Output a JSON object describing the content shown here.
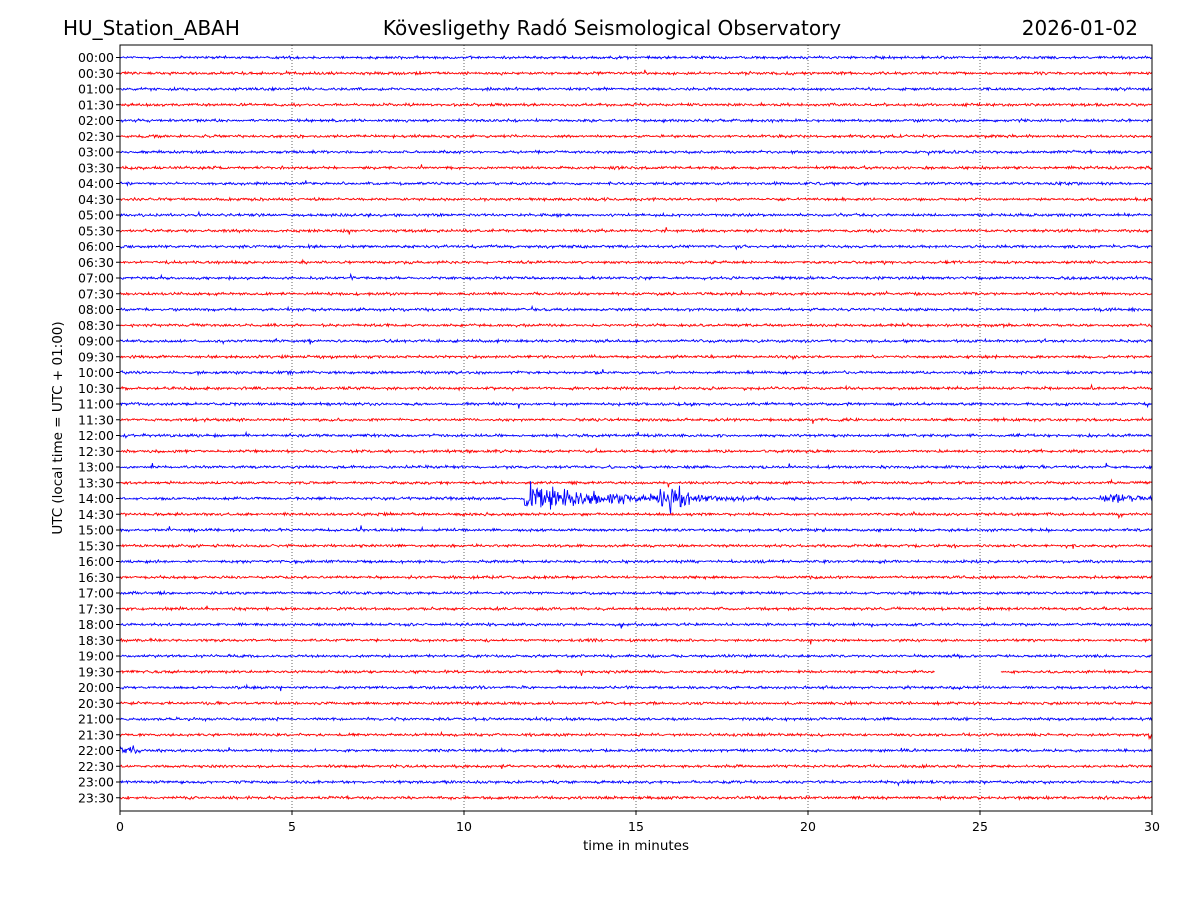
{
  "header": {
    "station": "HU_Station_ABAH",
    "observatory": "Kövesligethy Radó Seismological Observatory",
    "date": "2026-01-02"
  },
  "chart_data": {
    "type": "line",
    "title": "Kövesligethy Radó Seismological Observatory",
    "xlabel": "time in minutes",
    "ylabel": "UTC (local time = UTC + 01:00)",
    "xlim": [
      0,
      30
    ],
    "x_ticks": [
      0,
      5,
      10,
      15,
      20,
      25,
      30
    ],
    "grid": "vertical dotted at x ticks",
    "row_labels": [
      "00:00",
      "00:30",
      "01:00",
      "01:30",
      "02:00",
      "02:30",
      "03:00",
      "03:30",
      "04:00",
      "04:30",
      "05:00",
      "05:30",
      "06:00",
      "06:30",
      "07:00",
      "07:30",
      "08:00",
      "08:30",
      "09:00",
      "09:30",
      "10:00",
      "10:30",
      "11:00",
      "11:30",
      "12:00",
      "12:30",
      "13:00",
      "13:30",
      "14:00",
      "14:30",
      "15:00",
      "15:30",
      "16:00",
      "16:30",
      "17:00",
      "17:30",
      "18:00",
      "18:30",
      "19:00",
      "19:30",
      "20:00",
      "20:30",
      "21:00",
      "21:30",
      "22:00",
      "22:30",
      "23:00",
      "23:30"
    ],
    "trace_colors": [
      "#0000ff",
      "#ff0000"
    ],
    "noise_amplitude": 0.12,
    "events": [
      {
        "row": "14:00",
        "start_min": 11.75,
        "end_min": 19.0,
        "peak_amplitude": 1.5,
        "description": "seismic event"
      },
      {
        "row": "14:00",
        "start_min": 28.5,
        "end_min": 30.0,
        "peak_amplitude": 0.35
      },
      {
        "row": "22:00",
        "start_min": 0.0,
        "end_min": 0.6,
        "peak_amplitude": 0.4
      },
      {
        "row": "21:30",
        "start_min": 29.9,
        "end_min": 30.0,
        "peak_amplitude": 0.5
      }
    ],
    "gaps": [
      {
        "row": "19:30",
        "start_min": 23.7,
        "end_min": 25.6
      }
    ]
  }
}
